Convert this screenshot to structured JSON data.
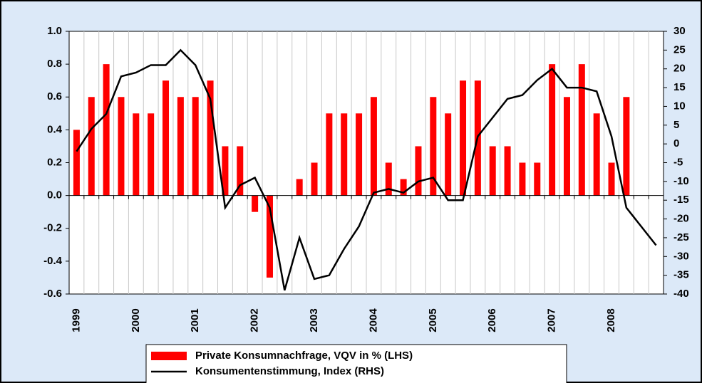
{
  "chart_data": {
    "type": "bar",
    "categories": [
      "1999",
      null,
      null,
      null,
      "2000",
      null,
      null,
      null,
      "2001",
      null,
      null,
      null,
      "2002",
      null,
      null,
      null,
      "2003",
      null,
      null,
      null,
      "2004",
      null,
      null,
      null,
      "2005",
      null,
      null,
      null,
      "2006",
      null,
      null,
      null,
      "2007",
      null,
      null,
      null,
      "2008",
      null,
      null,
      null
    ],
    "series": [
      {
        "name": "Private Konsumnachfrage, VQV in % (LHS)",
        "type": "bar",
        "color": "#ff0000",
        "values": [
          0.4,
          0.6,
          0.8,
          0.6,
          0.5,
          0.5,
          0.7,
          0.6,
          0.6,
          0.7,
          0.3,
          0.3,
          -0.1,
          -0.5,
          0,
          0.1,
          0.2,
          0.5,
          0.5,
          0.5,
          0.6,
          0.2,
          0.1,
          0.3,
          0.6,
          0.5,
          0.7,
          0.7,
          0.3,
          0.3,
          0.2,
          0.2,
          0.8,
          0.6,
          0.8,
          0.5,
          0.2,
          0.6,
          null,
          null
        ]
      },
      {
        "name": "Konsumentenstimmung, Index (RHS)",
        "type": "line",
        "axis": "y2",
        "color": "#000000",
        "values": [
          -2,
          4,
          8,
          18,
          19,
          21,
          21,
          25,
          21,
          12,
          -17,
          -11,
          -9,
          -17,
          -39,
          -25,
          -36,
          -35,
          -28,
          -22,
          -13,
          -12,
          -13,
          -10,
          -9,
          -15,
          -15,
          2,
          7,
          12,
          13,
          17,
          20,
          15,
          15,
          14,
          2,
          -17,
          -22,
          -27
        ]
      }
    ],
    "ylim": [
      -0.6,
      1.0
    ],
    "yticks": [
      -0.6,
      -0.4,
      -0.2,
      {
        "value": 0,
        "label": "0.0"
      },
      0.2,
      0.4,
      0.6,
      0.8,
      {
        "value": 1,
        "label": "1.0"
      }
    ],
    "y2lim": [
      -40,
      30
    ],
    "y2ticks": [
      -40,
      -35,
      -30,
      -25,
      -20,
      -15,
      -10,
      -5,
      0,
      5,
      10,
      15,
      20,
      25,
      30
    ],
    "grid": true
  }
}
